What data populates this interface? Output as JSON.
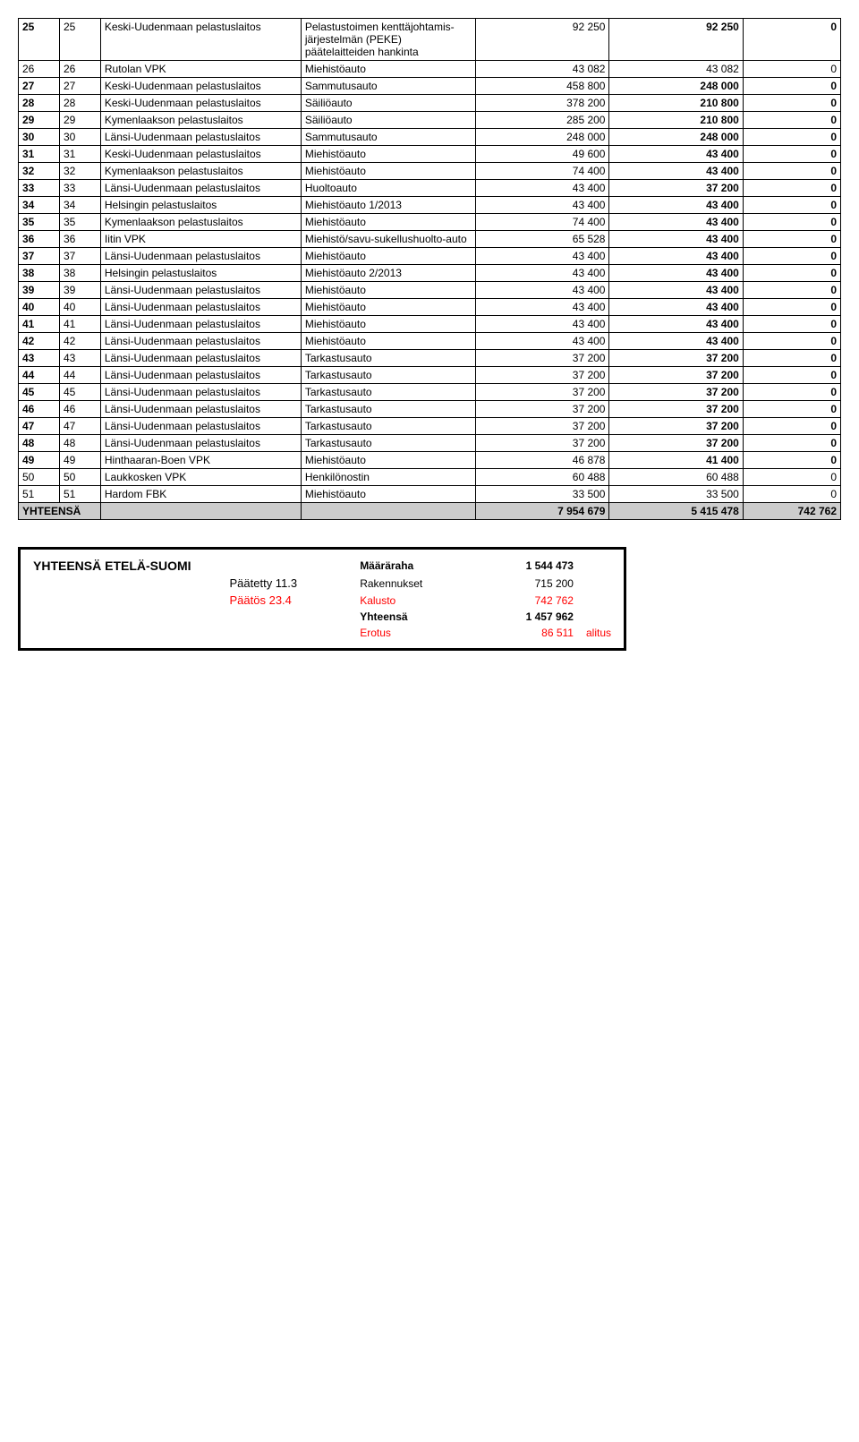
{
  "table": {
    "rows": [
      {
        "a": "25",
        "b": "25",
        "c": "Keski-Uudenmaan pelastuslaitos",
        "d": "Pelastustoimen kenttäjohtamis-järjestelmän (PEKE) päätelaitteiden hankinta",
        "e": "92 250",
        "f": "92 250",
        "g": "0",
        "bold": true
      },
      {
        "a": "26",
        "b": "26",
        "c": "Rutolan VPK",
        "d": "Miehistöauto",
        "e": "43 082",
        "f": "43 082",
        "g": "0",
        "bold": false
      },
      {
        "a": "27",
        "b": "27",
        "c": "Keski-Uudenmaan pelastuslaitos",
        "d": "Sammutusauto",
        "e": "458 800",
        "f": "248 000",
        "g": "0",
        "bold": true
      },
      {
        "a": "28",
        "b": "28",
        "c": "Keski-Uudenmaan pelastuslaitos",
        "d": "Säiliöauto",
        "e": "378 200",
        "f": "210 800",
        "g": "0",
        "bold": true
      },
      {
        "a": "29",
        "b": "29",
        "c": "Kymenlaakson pelastuslaitos",
        "d": "Säiliöauto",
        "e": "285 200",
        "f": "210 800",
        "g": "0",
        "bold": true
      },
      {
        "a": "30",
        "b": "30",
        "c": "Länsi-Uudenmaan pelastuslaitos",
        "d": "Sammutusauto",
        "e": "248 000",
        "f": "248 000",
        "g": "0",
        "bold": true
      },
      {
        "a": "31",
        "b": "31",
        "c": "Keski-Uudenmaan pelastuslaitos",
        "d": "Miehistöauto",
        "e": "49 600",
        "f": "43 400",
        "g": "0",
        "bold": true
      },
      {
        "a": "32",
        "b": "32",
        "c": "Kymenlaakson pelastuslaitos",
        "d": "Miehistöauto",
        "e": "74 400",
        "f": "43 400",
        "g": "0",
        "bold": true
      },
      {
        "a": "33",
        "b": "33",
        "c": "Länsi-Uudenmaan pelastuslaitos",
        "d": "Huoltoauto",
        "e": "43 400",
        "f": "37 200",
        "g": "0",
        "bold": true
      },
      {
        "a": "34",
        "b": "34",
        "c": "Helsingin pelastuslaitos",
        "d": "Miehistöauto 1/2013",
        "e": "43 400",
        "f": "43 400",
        "g": "0",
        "bold": true
      },
      {
        "a": "35",
        "b": "35",
        "c": "Kymenlaakson pelastuslaitos",
        "d": "Miehistöauto",
        "e": "74 400",
        "f": "43 400",
        "g": "0",
        "bold": true
      },
      {
        "a": "36",
        "b": "36",
        "c": "Iitin VPK",
        "d": "Miehistö/savu-sukellushuolto-auto",
        "e": "65 528",
        "f": "43 400",
        "g": "0",
        "bold": true
      },
      {
        "a": "37",
        "b": "37",
        "c": "Länsi-Uudenmaan pelastuslaitos",
        "d": "Miehistöauto",
        "e": "43 400",
        "f": "43 400",
        "g": "0",
        "bold": true
      },
      {
        "a": "38",
        "b": "38",
        "c": "Helsingin pelastuslaitos",
        "d": "Miehistöauto 2/2013",
        "e": "43 400",
        "f": "43 400",
        "g": "0",
        "bold": true
      },
      {
        "a": "39",
        "b": "39",
        "c": "Länsi-Uudenmaan pelastuslaitos",
        "d": "Miehistöauto",
        "e": "43 400",
        "f": "43 400",
        "g": "0",
        "bold": true
      },
      {
        "a": "40",
        "b": "40",
        "c": "Länsi-Uudenmaan pelastuslaitos",
        "d": "Miehistöauto",
        "e": "43 400",
        "f": "43 400",
        "g": "0",
        "bold": true
      },
      {
        "a": "41",
        "b": "41",
        "c": "Länsi-Uudenmaan pelastuslaitos",
        "d": "Miehistöauto",
        "e": "43 400",
        "f": "43 400",
        "g": "0",
        "bold": true
      },
      {
        "a": "42",
        "b": "42",
        "c": "Länsi-Uudenmaan pelastuslaitos",
        "d": "Miehistöauto",
        "e": "43 400",
        "f": "43 400",
        "g": "0",
        "bold": true
      },
      {
        "a": "43",
        "b": "43",
        "c": "Länsi-Uudenmaan pelastuslaitos",
        "d": "Tarkastusauto",
        "e": "37 200",
        "f": "37 200",
        "g": "0",
        "bold": true
      },
      {
        "a": "44",
        "b": "44",
        "c": "Länsi-Uudenmaan pelastuslaitos",
        "d": "Tarkastusauto",
        "e": "37 200",
        "f": "37 200",
        "g": "0",
        "bold": true
      },
      {
        "a": "45",
        "b": "45",
        "c": "Länsi-Uudenmaan pelastuslaitos",
        "d": "Tarkastusauto",
        "e": "37 200",
        "f": "37 200",
        "g": "0",
        "bold": true
      },
      {
        "a": "46",
        "b": "46",
        "c": "Länsi-Uudenmaan pelastuslaitos",
        "d": "Tarkastusauto",
        "e": "37 200",
        "f": "37 200",
        "g": "0",
        "bold": true
      },
      {
        "a": "47",
        "b": "47",
        "c": "Länsi-Uudenmaan pelastuslaitos",
        "d": "Tarkastusauto",
        "e": "37 200",
        "f": "37 200",
        "g": "0",
        "bold": true
      },
      {
        "a": "48",
        "b": "48",
        "c": "Länsi-Uudenmaan pelastuslaitos",
        "d": "Tarkastusauto",
        "e": "37 200",
        "f": "37 200",
        "g": "0",
        "bold": true
      },
      {
        "a": "49",
        "b": "49",
        "c": "Hinthaaran-Boen VPK",
        "d": "Miehistöauto",
        "e": "46 878",
        "f": "41 400",
        "g": "0",
        "bold": true
      },
      {
        "a": "50",
        "b": "50",
        "c": "Laukkosken VPK",
        "d": "Henkilönostin",
        "e": "60 488",
        "f": "60 488",
        "g": "0",
        "bold": false
      },
      {
        "a": "51",
        "b": "51",
        "c": "Hardom FBK",
        "d": "Miehistöauto",
        "e": "33 500",
        "f": "33 500",
        "g": "0",
        "bold": false
      }
    ],
    "total": {
      "label": "YHTEENSÄ",
      "e": "7 954 679",
      "f": "5 415 478",
      "g": "742 762"
    }
  },
  "summary": {
    "title": "YHTEENSÄ ETELÄ-SUOMI",
    "lines": [
      {
        "mid": "",
        "cap": "Määräraha",
        "val": "1 544 473",
        "bold": true,
        "red": false
      },
      {
        "mid": "Päätetty 11.3",
        "cap": "Rakennukset",
        "val": "715 200",
        "bold": false,
        "red": false
      },
      {
        "mid": "Päätös 23.4",
        "cap": "Kalusto",
        "val": "742 762",
        "bold": false,
        "red": true
      },
      {
        "mid": "",
        "cap": "Yhteensä",
        "val": "1 457 962",
        "bold": true,
        "red": false
      },
      {
        "mid": "",
        "cap": "Erotus",
        "val": "86 511",
        "bold": false,
        "red": true,
        "extra": "alitus"
      }
    ]
  }
}
